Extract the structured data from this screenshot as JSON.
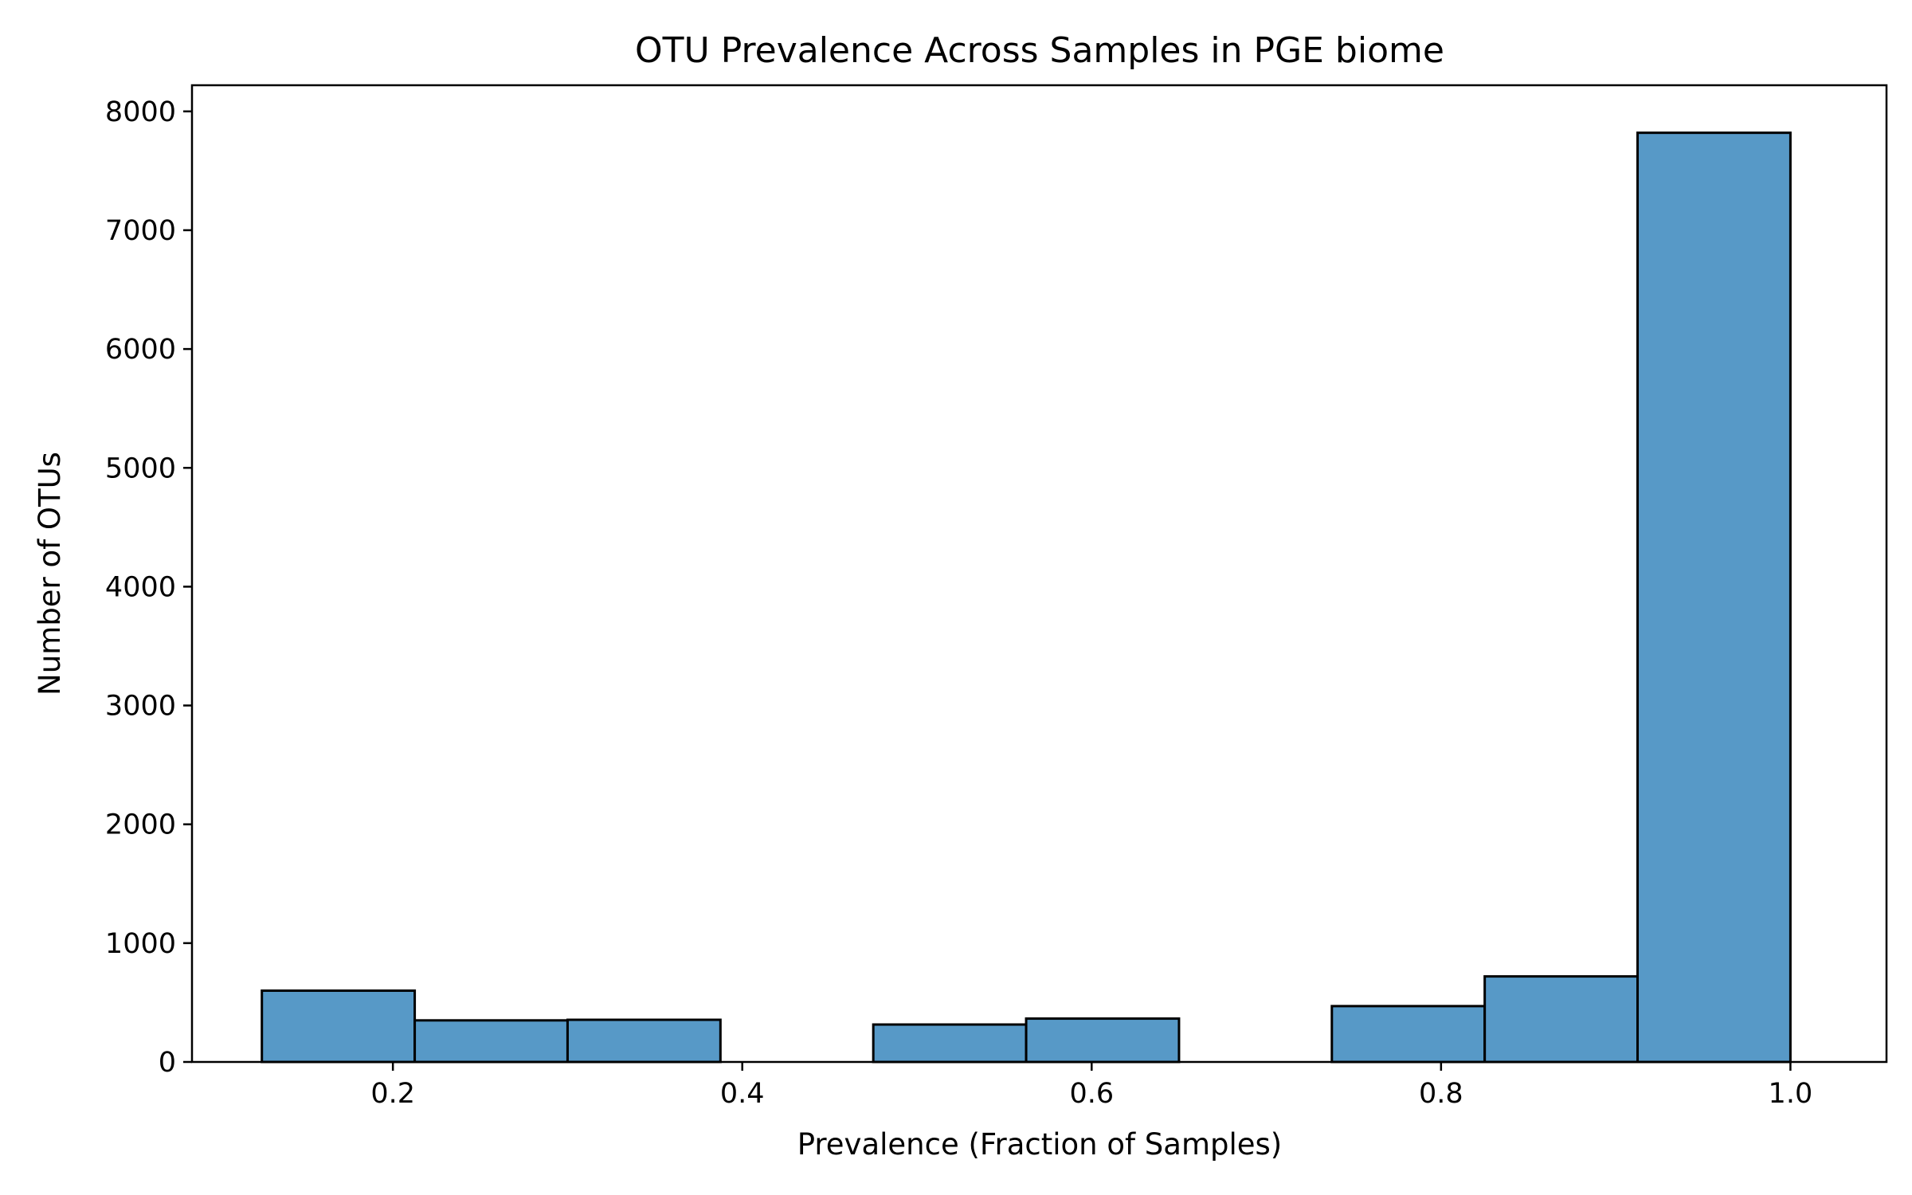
{
  "chart_data": {
    "type": "bar",
    "title": "OTU Prevalence Across Samples in PGE biome",
    "xlabel": "Prevalence (Fraction of Samples)",
    "ylabel": "Number of OTUs",
    "xlim": [
      0.085,
      1.055
    ],
    "ylim": [
      0,
      8220
    ],
    "x_ticks": [
      0.2,
      0.4,
      0.6,
      0.8,
      1.0
    ],
    "x_tick_labels": [
      "0.2",
      "0.4",
      "0.6",
      "0.8",
      "1.0"
    ],
    "y_ticks": [
      0,
      1000,
      2000,
      3000,
      4000,
      5000,
      6000,
      7000,
      8000
    ],
    "y_tick_labels": [
      "0",
      "1000",
      "2000",
      "3000",
      "4000",
      "5000",
      "6000",
      "7000",
      "8000"
    ],
    "grid": false,
    "bins": [
      {
        "start": 0.125,
        "end": 0.2125,
        "value": 600
      },
      {
        "start": 0.2125,
        "end": 0.3,
        "value": 350
      },
      {
        "start": 0.3,
        "end": 0.3875,
        "value": 355
      },
      {
        "start": 0.3875,
        "end": 0.475,
        "value": 0
      },
      {
        "start": 0.475,
        "end": 0.5625,
        "value": 315
      },
      {
        "start": 0.5625,
        "end": 0.65,
        "value": 365
      },
      {
        "start": 0.65,
        "end": 0.7375,
        "value": 0
      },
      {
        "start": 0.7375,
        "end": 0.825,
        "value": 470
      },
      {
        "start": 0.825,
        "end": 0.9125,
        "value": 720
      },
      {
        "start": 0.9125,
        "end": 1.0,
        "value": 7820
      }
    ],
    "colors": {
      "bar_fill": "#5799c7",
      "bar_edge": "#000000",
      "axis": "#000000"
    }
  }
}
